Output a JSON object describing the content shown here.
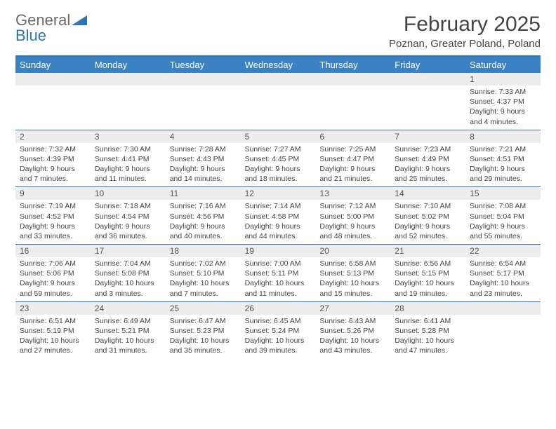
{
  "logo": {
    "text_gray": "General",
    "text_blue": "Blue"
  },
  "title": "February 2025",
  "location": "Poznan, Greater Poland, Poland",
  "colors": {
    "header_bar": "#3b82c4",
    "header_border": "#2f75b5",
    "daynum_bg": "#ededed",
    "text": "#444444"
  },
  "day_names": [
    "Sunday",
    "Monday",
    "Tuesday",
    "Wednesday",
    "Thursday",
    "Friday",
    "Saturday"
  ],
  "weeks": [
    [
      {
        "n": "",
        "sunrise": "",
        "sunset": "",
        "daylight": ""
      },
      {
        "n": "",
        "sunrise": "",
        "sunset": "",
        "daylight": ""
      },
      {
        "n": "",
        "sunrise": "",
        "sunset": "",
        "daylight": ""
      },
      {
        "n": "",
        "sunrise": "",
        "sunset": "",
        "daylight": ""
      },
      {
        "n": "",
        "sunrise": "",
        "sunset": "",
        "daylight": ""
      },
      {
        "n": "",
        "sunrise": "",
        "sunset": "",
        "daylight": ""
      },
      {
        "n": "1",
        "sunrise": "Sunrise: 7:33 AM",
        "sunset": "Sunset: 4:37 PM",
        "daylight": "Daylight: 9 hours and 4 minutes."
      }
    ],
    [
      {
        "n": "2",
        "sunrise": "Sunrise: 7:32 AM",
        "sunset": "Sunset: 4:39 PM",
        "daylight": "Daylight: 9 hours and 7 minutes."
      },
      {
        "n": "3",
        "sunrise": "Sunrise: 7:30 AM",
        "sunset": "Sunset: 4:41 PM",
        "daylight": "Daylight: 9 hours and 11 minutes."
      },
      {
        "n": "4",
        "sunrise": "Sunrise: 7:28 AM",
        "sunset": "Sunset: 4:43 PM",
        "daylight": "Daylight: 9 hours and 14 minutes."
      },
      {
        "n": "5",
        "sunrise": "Sunrise: 7:27 AM",
        "sunset": "Sunset: 4:45 PM",
        "daylight": "Daylight: 9 hours and 18 minutes."
      },
      {
        "n": "6",
        "sunrise": "Sunrise: 7:25 AM",
        "sunset": "Sunset: 4:47 PM",
        "daylight": "Daylight: 9 hours and 21 minutes."
      },
      {
        "n": "7",
        "sunrise": "Sunrise: 7:23 AM",
        "sunset": "Sunset: 4:49 PM",
        "daylight": "Daylight: 9 hours and 25 minutes."
      },
      {
        "n": "8",
        "sunrise": "Sunrise: 7:21 AM",
        "sunset": "Sunset: 4:51 PM",
        "daylight": "Daylight: 9 hours and 29 minutes."
      }
    ],
    [
      {
        "n": "9",
        "sunrise": "Sunrise: 7:19 AM",
        "sunset": "Sunset: 4:52 PM",
        "daylight": "Daylight: 9 hours and 33 minutes."
      },
      {
        "n": "10",
        "sunrise": "Sunrise: 7:18 AM",
        "sunset": "Sunset: 4:54 PM",
        "daylight": "Daylight: 9 hours and 36 minutes."
      },
      {
        "n": "11",
        "sunrise": "Sunrise: 7:16 AM",
        "sunset": "Sunset: 4:56 PM",
        "daylight": "Daylight: 9 hours and 40 minutes."
      },
      {
        "n": "12",
        "sunrise": "Sunrise: 7:14 AM",
        "sunset": "Sunset: 4:58 PM",
        "daylight": "Daylight: 9 hours and 44 minutes."
      },
      {
        "n": "13",
        "sunrise": "Sunrise: 7:12 AM",
        "sunset": "Sunset: 5:00 PM",
        "daylight": "Daylight: 9 hours and 48 minutes."
      },
      {
        "n": "14",
        "sunrise": "Sunrise: 7:10 AM",
        "sunset": "Sunset: 5:02 PM",
        "daylight": "Daylight: 9 hours and 52 minutes."
      },
      {
        "n": "15",
        "sunrise": "Sunrise: 7:08 AM",
        "sunset": "Sunset: 5:04 PM",
        "daylight": "Daylight: 9 hours and 55 minutes."
      }
    ],
    [
      {
        "n": "16",
        "sunrise": "Sunrise: 7:06 AM",
        "sunset": "Sunset: 5:06 PM",
        "daylight": "Daylight: 9 hours and 59 minutes."
      },
      {
        "n": "17",
        "sunrise": "Sunrise: 7:04 AM",
        "sunset": "Sunset: 5:08 PM",
        "daylight": "Daylight: 10 hours and 3 minutes."
      },
      {
        "n": "18",
        "sunrise": "Sunrise: 7:02 AM",
        "sunset": "Sunset: 5:10 PM",
        "daylight": "Daylight: 10 hours and 7 minutes."
      },
      {
        "n": "19",
        "sunrise": "Sunrise: 7:00 AM",
        "sunset": "Sunset: 5:11 PM",
        "daylight": "Daylight: 10 hours and 11 minutes."
      },
      {
        "n": "20",
        "sunrise": "Sunrise: 6:58 AM",
        "sunset": "Sunset: 5:13 PM",
        "daylight": "Daylight: 10 hours and 15 minutes."
      },
      {
        "n": "21",
        "sunrise": "Sunrise: 6:56 AM",
        "sunset": "Sunset: 5:15 PM",
        "daylight": "Daylight: 10 hours and 19 minutes."
      },
      {
        "n": "22",
        "sunrise": "Sunrise: 6:54 AM",
        "sunset": "Sunset: 5:17 PM",
        "daylight": "Daylight: 10 hours and 23 minutes."
      }
    ],
    [
      {
        "n": "23",
        "sunrise": "Sunrise: 6:51 AM",
        "sunset": "Sunset: 5:19 PM",
        "daylight": "Daylight: 10 hours and 27 minutes."
      },
      {
        "n": "24",
        "sunrise": "Sunrise: 6:49 AM",
        "sunset": "Sunset: 5:21 PM",
        "daylight": "Daylight: 10 hours and 31 minutes."
      },
      {
        "n": "25",
        "sunrise": "Sunrise: 6:47 AM",
        "sunset": "Sunset: 5:23 PM",
        "daylight": "Daylight: 10 hours and 35 minutes."
      },
      {
        "n": "26",
        "sunrise": "Sunrise: 6:45 AM",
        "sunset": "Sunset: 5:24 PM",
        "daylight": "Daylight: 10 hours and 39 minutes."
      },
      {
        "n": "27",
        "sunrise": "Sunrise: 6:43 AM",
        "sunset": "Sunset: 5:26 PM",
        "daylight": "Daylight: 10 hours and 43 minutes."
      },
      {
        "n": "28",
        "sunrise": "Sunrise: 6:41 AM",
        "sunset": "Sunset: 5:28 PM",
        "daylight": "Daylight: 10 hours and 47 minutes."
      },
      {
        "n": "",
        "sunrise": "",
        "sunset": "",
        "daylight": ""
      }
    ]
  ]
}
